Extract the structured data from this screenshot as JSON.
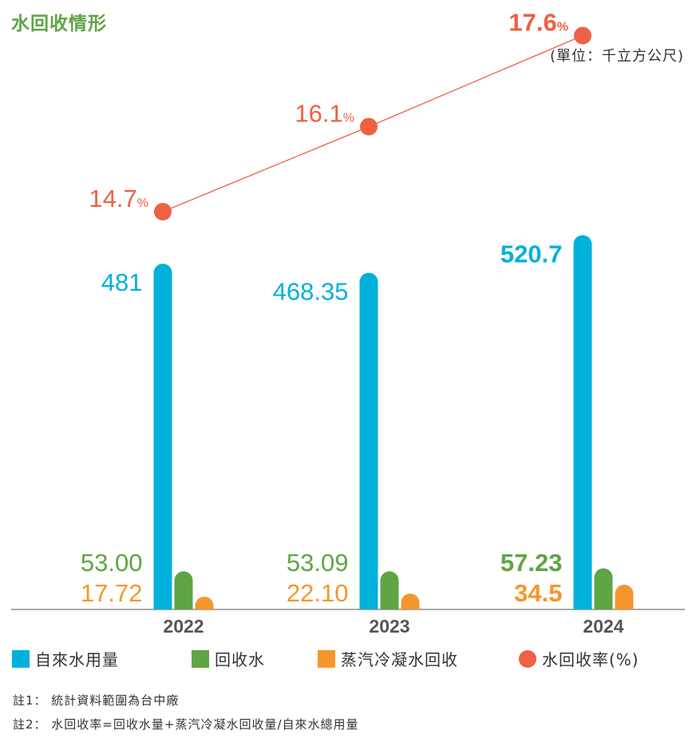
{
  "title": "水回收情形",
  "unit": "(單位：千立方公尺)",
  "colors": {
    "tap": "#00b1dc",
    "recycled": "#5fa544",
    "condensate": "#f5962d",
    "rate": "#ee6144",
    "axis": "#555555",
    "year": "#555555"
  },
  "legend": [
    {
      "label": "自來水用量",
      "shape": "square",
      "color": "#00b1dc"
    },
    {
      "label": "回收水",
      "shape": "square",
      "color": "#5fa544"
    },
    {
      "label": "蒸汽冷凝水回收",
      "shape": "square",
      "color": "#f5962d"
    },
    {
      "label": "水回收率(%)",
      "shape": "circle",
      "color": "#ee6144"
    }
  ],
  "notes": {
    "note1": "註1： 統計資料範圍為台中廠",
    "note2": "註2： 水回收率=回收水量+蒸汽冷凝水回收量/自來水總用量"
  },
  "chart_data": {
    "type": "bar",
    "categories": [
      "2022",
      "2023",
      "2024"
    ],
    "series": [
      {
        "name": "自來水用量",
        "values": [
          481,
          468.35,
          520.7
        ],
        "labels": [
          "481",
          "468.35",
          "520.7"
        ]
      },
      {
        "name": "回收水",
        "values": [
          53.0,
          53.09,
          57.23
        ],
        "labels": [
          "53.00",
          "53.09",
          "57.23"
        ]
      },
      {
        "name": "蒸汽冷凝水回收",
        "values": [
          17.72,
          22.1,
          34.5
        ],
        "labels": [
          "17.72",
          "22.10",
          "34.5"
        ]
      }
    ],
    "line": {
      "name": "水回收率(%)",
      "values": [
        14.7,
        16.1,
        17.6
      ],
      "labels": [
        "14.7",
        "16.1",
        "17.6"
      ],
      "unit": "%"
    },
    "bold_category_index": 2
  }
}
